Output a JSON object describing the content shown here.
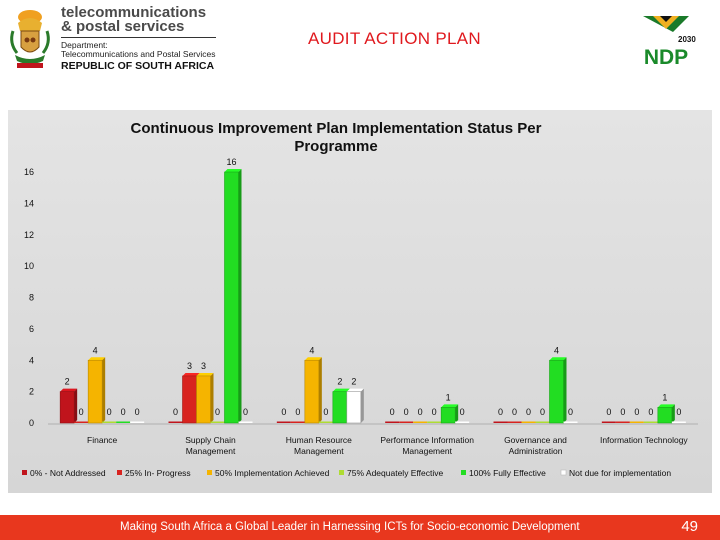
{
  "header": {
    "dept_name_line1": "telecommunications",
    "dept_name_line2": "& postal services",
    "dept_label": "Department:",
    "dept_full": "Telecommunications and Postal Services",
    "country": "REPUBLIC OF SOUTH AFRICA",
    "page_title": "AUDIT ACTION PLAN",
    "ndp_logo_text": "NDP",
    "ndp_year": "2030"
  },
  "colors": {
    "not_addressed": "#c0141c",
    "in_progress": "#d8231f",
    "implementation_achieved": "#f5b400",
    "adequately_effective": "#aedc32",
    "fully_effective": "#22dd22",
    "not_due": "#ffffff",
    "title_red": "#e0191e",
    "footer_bg": "#e8371e"
  },
  "chart_data": {
    "type": "bar",
    "title": "Continuous Improvement Plan Implementation Status Per Programme",
    "xlabel": "",
    "ylabel": "",
    "ylim": [
      0,
      16
    ],
    "yticks": [
      0,
      2,
      4,
      6,
      8,
      10,
      12,
      14,
      16
    ],
    "grid": false,
    "legend_position": "bottom",
    "categories": [
      "Finance",
      "Supply Chain Management",
      "Human Resource Management",
      "Performance Information Management",
      "Governance and Administration",
      "Information Technology"
    ],
    "series": [
      {
        "name": "0% - Not Addressed",
        "color_key": "not_addressed",
        "values": [
          2,
          0,
          0,
          0,
          0,
          0
        ]
      },
      {
        "name": "25% In- Progress",
        "color_key": "in_progress",
        "values": [
          0,
          3,
          0,
          0,
          0,
          0
        ]
      },
      {
        "name": "50% Implementation Achieved",
        "color_key": "implementation_achieved",
        "values": [
          4,
          3,
          4,
          0,
          0,
          0
        ]
      },
      {
        "name": "75% Adequately Effective",
        "color_key": "adequately_effective",
        "values": [
          0,
          0,
          0,
          0,
          0,
          0
        ]
      },
      {
        "name": "100% Fully Effective",
        "color_key": "fully_effective",
        "values": [
          0,
          16,
          2,
          1,
          4,
          1
        ]
      },
      {
        "name": "Not due for implementation",
        "color_key": "not_due",
        "values": [
          0,
          0,
          2,
          0,
          0,
          0
        ]
      }
    ],
    "category_labels": [
      [
        "Finance"
      ],
      [
        "Supply Chain",
        "Management"
      ],
      [
        "Human Resource",
        "Management"
      ],
      [
        "Performance Information",
        "Management"
      ],
      [
        "Governance and",
        "Administration"
      ],
      [
        "Information Technology"
      ]
    ]
  },
  "footer": {
    "tagline": "Making South Africa a Global Leader in Harnessing ICTs for Socio-economic Development",
    "page_number": "49"
  }
}
